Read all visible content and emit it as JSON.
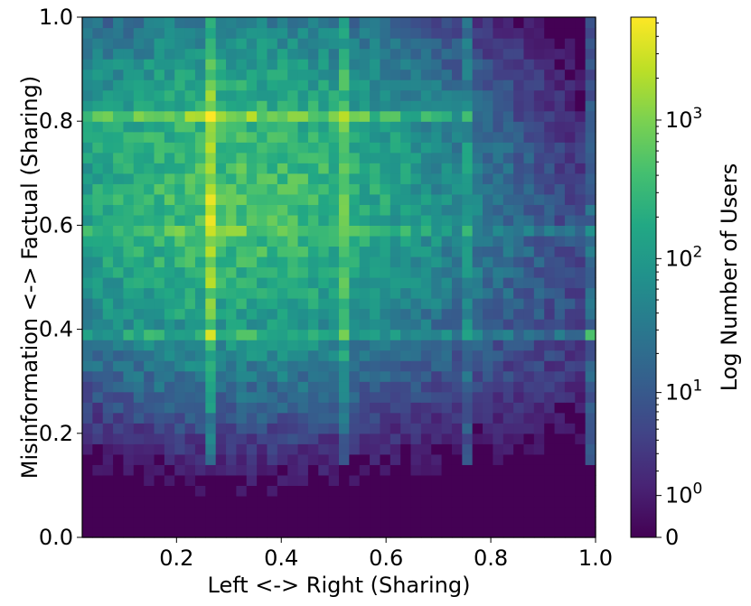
{
  "chart_data": {
    "type": "heatmap",
    "title": "",
    "xlabel": "Left <-> Right (Sharing)",
    "ylabel": "Misinformation <-> Factual (Sharing)",
    "xlim": [
      0.02,
      1.0
    ],
    "ylim": [
      0.0,
      1.0
    ],
    "x_ticks": [
      {
        "value": 0.2,
        "label": "0.2"
      },
      {
        "value": 0.4,
        "label": "0.4"
      },
      {
        "value": 0.6,
        "label": "0.6"
      },
      {
        "value": 0.8,
        "label": "0.8"
      },
      {
        "value": 1.0,
        "label": "1.0"
      }
    ],
    "y_ticks": [
      {
        "value": 0.0,
        "label": "0.0"
      },
      {
        "value": 0.2,
        "label": "0.2"
      },
      {
        "value": 0.4,
        "label": "0.4"
      },
      {
        "value": 0.6,
        "label": "0.6"
      },
      {
        "value": 0.8,
        "label": "0.8"
      },
      {
        "value": 1.0,
        "label": "1.0"
      }
    ],
    "bins": {
      "x": 50,
      "y": 50
    },
    "grid": false,
    "colormap": "viridis",
    "colorbar": {
      "label": "Log Number of Users",
      "scale": "symlog",
      "max": 5500,
      "ticks": [
        {
          "value": 0,
          "base": "0",
          "exp": ""
        },
        {
          "value": 1,
          "base": "10",
          "exp": "0"
        },
        {
          "value": 10,
          "base": "10",
          "exp": "1"
        },
        {
          "value": 100,
          "base": "10",
          "exp": "2"
        },
        {
          "value": 1000,
          "base": "10",
          "exp": "3"
        }
      ]
    },
    "density_model": {
      "blob": {
        "x_center": 0.32,
        "y_center": 0.66,
        "x_width": 0.28,
        "y_width": 0.22,
        "peak_count": 400
      },
      "tail": {
        "x_center": 0.8,
        "y_center": 0.5,
        "x_width": 0.22,
        "y_width": 0.2,
        "peak_count": 8
      },
      "bright_columns": [
        {
          "x": 0.26,
          "factor": 5
        },
        {
          "x": 0.52,
          "factor": 3
        },
        {
          "x": 0.76,
          "factor": 2.5
        },
        {
          "x": 0.99,
          "factor": 2.5
        }
      ],
      "bright_rows": [
        {
          "y": 0.8,
          "factor": 4,
          "x_max": 0.76
        },
        {
          "y": 0.39,
          "factor": 3,
          "x_max": 1.0
        },
        {
          "y": 0.59,
          "factor": 1.8,
          "x_max": 1.0
        }
      ],
      "hotspots": [
        {
          "x": 0.26,
          "y": 0.8,
          "count": 5500
        },
        {
          "x": 0.26,
          "y": 0.39,
          "count": 5200
        },
        {
          "x": 0.26,
          "y": 0.6,
          "count": 3000
        },
        {
          "x": 0.52,
          "y": 0.8,
          "count": 1800
        },
        {
          "x": 0.99,
          "y": 0.39,
          "count": 900
        },
        {
          "x": 0.76,
          "y": 0.8,
          "count": 500
        }
      ]
    }
  }
}
